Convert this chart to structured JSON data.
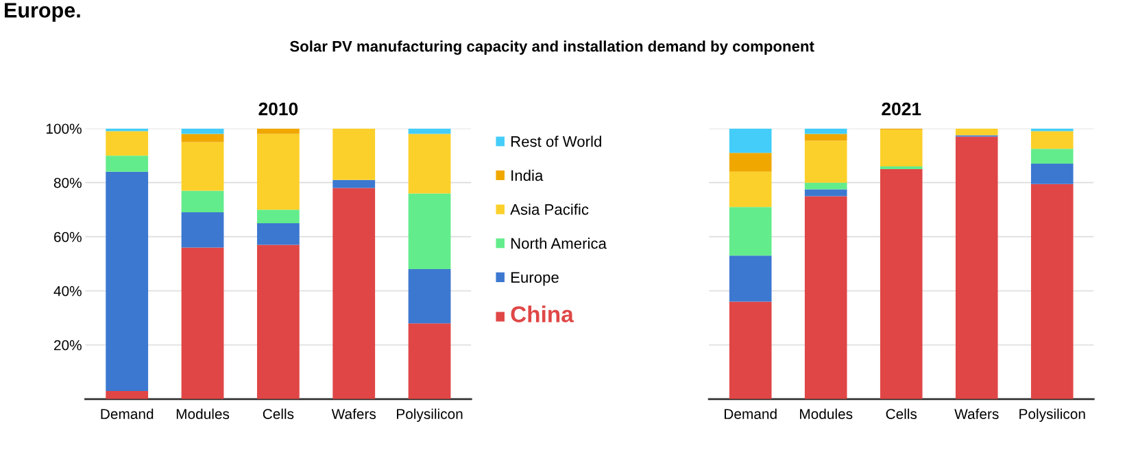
{
  "chart_data": [
    {
      "type": "bar",
      "title": "2010",
      "stacked": true,
      "categories": [
        "Demand",
        "Modules",
        "Cells",
        "Wafers",
        "Polysilicon"
      ],
      "series": [
        {
          "name": "China",
          "color": "#e04646",
          "values": [
            3,
            56,
            57,
            78,
            28
          ]
        },
        {
          "name": "Europe",
          "color": "#3c78d0",
          "values": [
            81,
            13,
            8,
            3,
            20
          ]
        },
        {
          "name": "North America",
          "color": "#63ec8c",
          "values": [
            6,
            8,
            5,
            0,
            28
          ]
        },
        {
          "name": "Asia Pacific",
          "color": "#fcd02a",
          "values": [
            9,
            18,
            28,
            19,
            22
          ]
        },
        {
          "name": "India",
          "color": "#f0a800",
          "values": [
            0,
            3,
            2,
            0,
            0
          ]
        },
        {
          "name": "Rest of World",
          "color": "#44cdf8",
          "values": [
            1,
            2,
            0,
            0,
            2
          ]
        }
      ],
      "ylim": [
        0,
        100
      ],
      "yticks": [
        {
          "value": 20,
          "label": "20%"
        },
        {
          "value": 40,
          "label": "40%"
        },
        {
          "value": 60,
          "label": "60%"
        },
        {
          "value": 80,
          "label": "80%"
        },
        {
          "value": 100,
          "label": "100%"
        }
      ],
      "grid": "y",
      "legend": "right",
      "annotations": [
        "Europe.",
        "Solar PV manufacturing capacity and installation demand by component"
      ]
    },
    {
      "type": "bar",
      "title": "2021",
      "stacked": true,
      "categories": [
        "Demand",
        "Modules",
        "Cells",
        "Wafers",
        "Polysilicon"
      ],
      "series": [
        {
          "color": "#e04646",
          "values": [
            36,
            75,
            85,
            97,
            79.5
          ]
        },
        {
          "color": "#3c78d0",
          "values": [
            17,
            2.5,
            0,
            0.5,
            7.5
          ]
        },
        {
          "color": "#63ec8c",
          "values": [
            18,
            2.5,
            1,
            0,
            5.5
          ]
        },
        {
          "color": "#fcd02a",
          "values": [
            13,
            15.5,
            13.5,
            2.5,
            6.5
          ]
        },
        {
          "color": "#f0a800",
          "values": [
            7,
            2.5,
            0.5,
            0,
            0
          ]
        },
        {
          "color": "#44cdf8",
          "values": [
            9,
            2,
            0,
            0,
            1
          ]
        }
      ],
      "ylim": [
        0,
        100
      ],
      "yticks": [
        {
          "value": 20,
          "label": null
        },
        {
          "value": 40,
          "label": null
        },
        {
          "value": 60,
          "label": null
        },
        {
          "value": 80,
          "label": null
        },
        {
          "value": 100,
          "label": null
        }
      ],
      "grid": "y",
      "tick_labels": "x"
    }
  ]
}
